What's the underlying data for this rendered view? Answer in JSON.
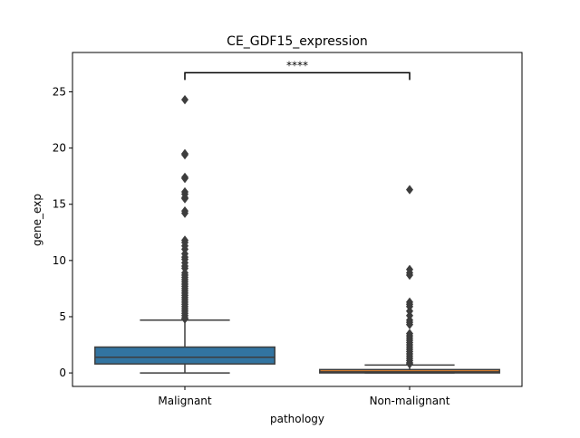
{
  "chart_data": {
    "type": "box",
    "title": "CE_GDF15_expression",
    "xlabel": "pathology",
    "ylabel": "gene_exp",
    "categories": [
      "Malignant",
      "Non-malignant"
    ],
    "ylim": [
      -1.2,
      28.5
    ],
    "yticks": [
      0,
      5,
      10,
      15,
      20,
      25
    ],
    "boxes": [
      {
        "category": "Malignant",
        "color": "#3274a1",
        "whisker_low": 0.0,
        "q1": 0.8,
        "median": 1.4,
        "q3": 2.3,
        "whisker_high": 4.7,
        "outliers": [
          24.3,
          19.5,
          19.4,
          17.4,
          17.3,
          16.1,
          15.9,
          15.6,
          15.5,
          14.4,
          14.2,
          11.8,
          11.6,
          11.3,
          11.0,
          10.6,
          10.3,
          10.1,
          9.8,
          9.5,
          9.3,
          8.9,
          8.7,
          8.5,
          8.3,
          8.1,
          7.9,
          7.7,
          7.5,
          7.3,
          7.1,
          6.9,
          6.7,
          6.5,
          6.3,
          6.1,
          5.9,
          5.7,
          5.5,
          5.3,
          5.1,
          4.9,
          4.8
        ]
      },
      {
        "category": "Non-malignant",
        "color": "#e1812c",
        "whisker_low": 0.0,
        "q1": 0.0,
        "median": 0.1,
        "q3": 0.3,
        "whisker_high": 0.7,
        "outliers": [
          16.3,
          9.2,
          8.9,
          8.7,
          6.3,
          6.1,
          5.9,
          5.5,
          5.1,
          4.7,
          4.5,
          4.3,
          3.5,
          3.3,
          3.1,
          2.9,
          2.7,
          2.5,
          2.3,
          2.1,
          1.9,
          1.7,
          1.5,
          1.3,
          1.1,
          0.9,
          0.8
        ]
      }
    ],
    "annotation": {
      "text": "****",
      "from": "Malignant",
      "to": "Non-malignant",
      "y": 26.7
    },
    "grid": false,
    "legend": "none"
  }
}
